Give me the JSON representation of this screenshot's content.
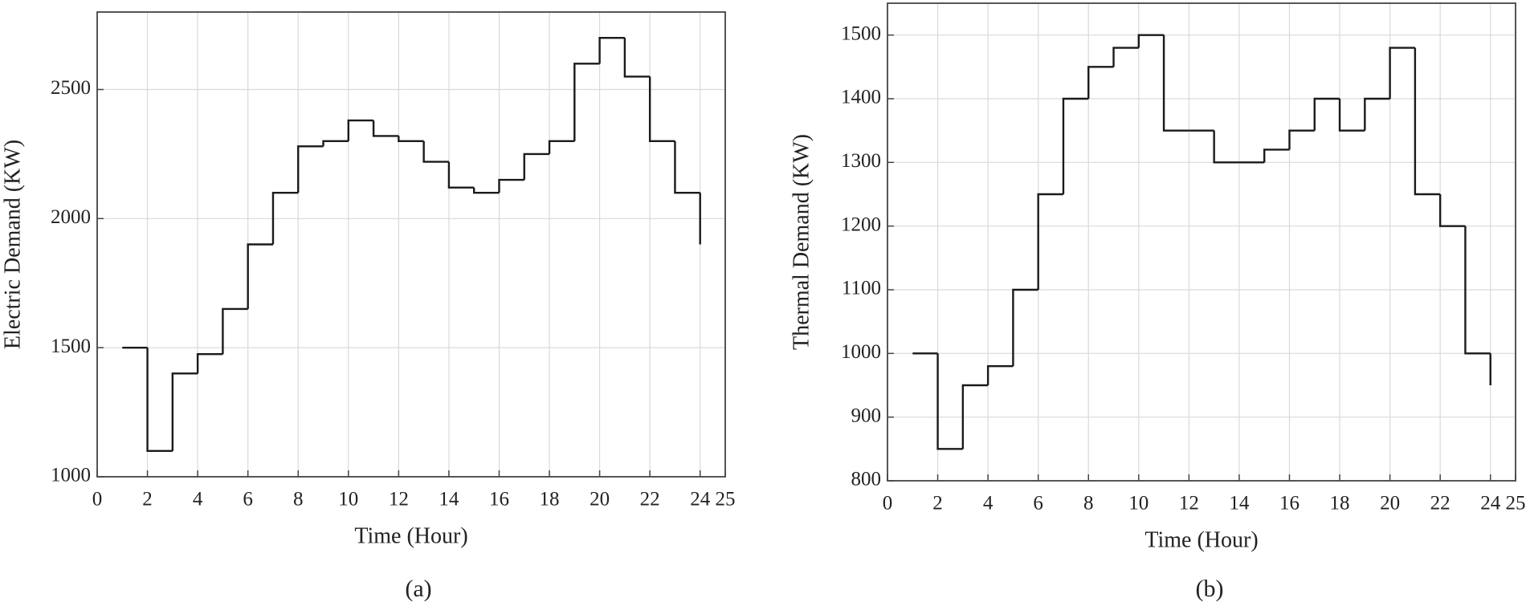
{
  "chart_data": [
    {
      "type": "line",
      "drawstyle": "steps-post",
      "color": "#1a1a1a",
      "grid": true,
      "xlabel": "Time (Hour)",
      "ylabel": "Electric Demand (KW)",
      "caption": "(a)",
      "x": [
        1,
        2,
        3,
        4,
        5,
        6,
        7,
        8,
        9,
        10,
        11,
        12,
        13,
        14,
        15,
        16,
        17,
        18,
        19,
        20,
        21,
        22,
        23,
        24
      ],
      "values": [
        1500,
        1100,
        1400,
        1475,
        1650,
        1900,
        2100,
        2280,
        2300,
        2380,
        2320,
        2300,
        2220,
        2120,
        2100,
        2150,
        2250,
        2300,
        2600,
        2700,
        2550,
        2300,
        2100,
        1900
      ],
      "xlim": [
        0,
        25
      ],
      "xticks": [
        0,
        2,
        4,
        6,
        8,
        10,
        12,
        14,
        16,
        18,
        20,
        22,
        24,
        25
      ],
      "ylim": [
        1000,
        2800
      ],
      "yticks": [
        1000,
        1500,
        2000,
        2500
      ]
    },
    {
      "type": "line",
      "drawstyle": "steps-post",
      "color": "#1a1a1a",
      "grid": true,
      "xlabel": "Time (Hour)",
      "ylabel": "Thermal Demand (KW)",
      "caption": "(b)",
      "x": [
        1,
        2,
        3,
        4,
        5,
        6,
        7,
        8,
        9,
        10,
        11,
        12,
        13,
        14,
        15,
        16,
        17,
        18,
        19,
        20,
        21,
        22,
        23,
        24
      ],
      "values": [
        1000,
        850,
        950,
        980,
        1100,
        1250,
        1400,
        1450,
        1480,
        1500,
        1350,
        1350,
        1300,
        1300,
        1320,
        1350,
        1400,
        1350,
        1400,
        1480,
        1250,
        1200,
        1000,
        950
      ],
      "xlim": [
        0,
        25
      ],
      "xticks": [
        0,
        2,
        4,
        6,
        8,
        10,
        12,
        14,
        16,
        18,
        20,
        22,
        24,
        25
      ],
      "ylim": [
        800,
        1550
      ],
      "yticks": [
        800,
        900,
        1000,
        1100,
        1200,
        1300,
        1400,
        1500
      ]
    }
  ]
}
